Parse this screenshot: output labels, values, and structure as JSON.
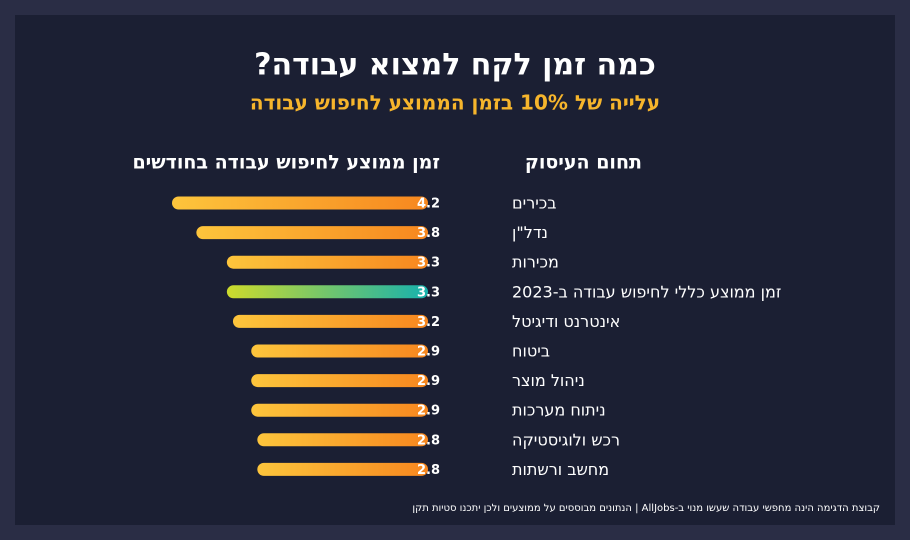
{
  "chart_data": {
    "type": "bar",
    "title": "כמה זמן לקח למצוא עבודה?",
    "subtitle": "עלייה של 10% בזמן הממוצע לחיפוש עבודה",
    "category_header": "תחום העיסוק",
    "value_header": "זמן ממוצע לחיפוש עבודה בחודשים",
    "categories": [
      "בכירים",
      "נדל\"ן",
      "מכירות",
      "זמן ממוצע כללי לחיפוש עבודה ב-2023",
      "אינטרנט ודיגיטל",
      "ביטוח",
      "ניהול מוצר",
      "ניתוח מערכות",
      "רכש ולוגיסטיקה",
      "מחשב ורשתות"
    ],
    "values": [
      4.2,
      3.8,
      3.3,
      3.3,
      3.2,
      2.9,
      2.9,
      2.9,
      2.8,
      2.8
    ],
    "color": [
      "#fdc53c",
      "#f7871f"
    ],
    "highlight": 3,
    "highlight_color": [
      "#cddb2c",
      "#17b1ad"
    ],
    "footnote": "קבוצת הדגימה הינה מחפשי עבודה שעשו מנוי ב-AllJobs | הנתונים מבוססים על ממוצעים ולכן יתכנו סטיות תקן"
  }
}
